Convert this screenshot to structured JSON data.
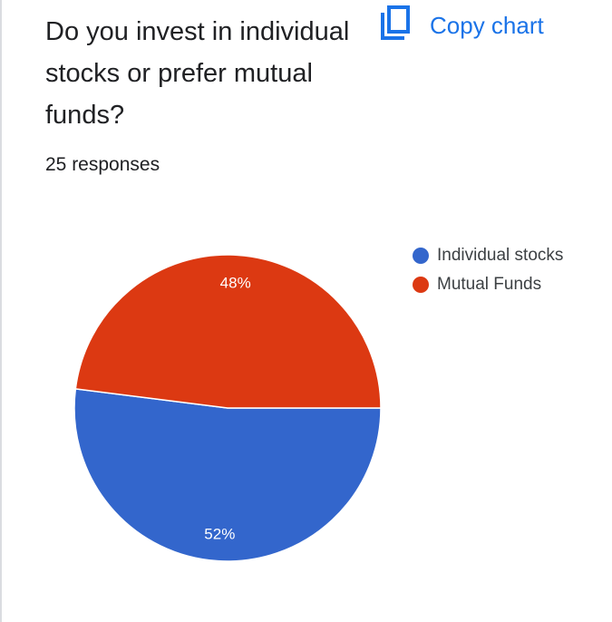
{
  "question": {
    "title": "Do you invest in individual stocks or prefer mutual funds?",
    "responses": "25 responses"
  },
  "toolbar": {
    "copy_label": "Copy chart",
    "copy_icon": "copy-icon"
  },
  "colors": {
    "accent": "#1a73e8",
    "series_1": "#3366cc",
    "series_2": "#dc3912"
  },
  "chart_data": {
    "type": "pie",
    "slices": [
      {
        "label": "Individual stocks",
        "value": 52,
        "display": "52%",
        "color": "#3366cc"
      },
      {
        "label": "Mutual Funds",
        "value": 48,
        "display": "48%",
        "color": "#dc3912"
      }
    ],
    "legend_position": "right"
  }
}
